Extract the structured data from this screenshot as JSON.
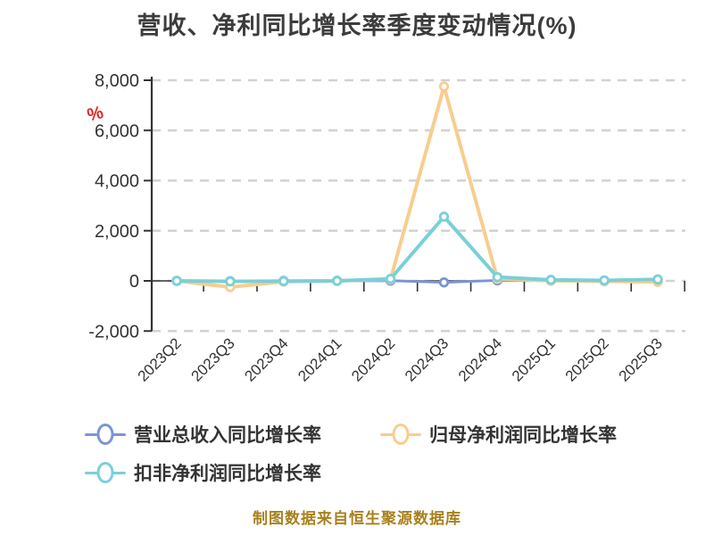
{
  "title": "营收、净利同比增长率季度变动情况(%)",
  "y_axis_unit": "%",
  "footer": "制图数据来自恒生聚源数据库",
  "colors": {
    "revenue": "#7b94d6",
    "net_profit": "#f8cd8e",
    "non_gaap": "#79d0d8",
    "grid": "#d2d2d2",
    "axis": "#333333",
    "label": "#333333",
    "title": "#3c3c3c",
    "unit": "#e42320",
    "footer": "#a9801c"
  },
  "legend": {
    "items": [
      {
        "key": "revenue",
        "label": "营业总收入同比增长率"
      },
      {
        "key": "net_profit",
        "label": "归母净利润同比增长率"
      },
      {
        "key": "non_gaap",
        "label": "扣非净利润同比增长率"
      }
    ]
  },
  "chart_data": {
    "type": "line",
    "categories": [
      "2023Q2",
      "2023Q3",
      "2023Q4",
      "2024Q1",
      "2024Q2",
      "2024Q3",
      "2024Q4",
      "2025Q1",
      "2025Q2",
      "2025Q3"
    ],
    "series": [
      {
        "key": "revenue",
        "name": "营业总收入同比增长率",
        "values": [
          0,
          -10,
          0,
          5,
          10,
          -60,
          20,
          10,
          0,
          10
        ]
      },
      {
        "key": "net_profit",
        "name": "归母净利润同比增长率",
        "values": [
          0,
          -250,
          -30,
          0,
          60,
          7750,
          80,
          10,
          -20,
          -40
        ]
      },
      {
        "key": "non_gaap",
        "name": "扣非净利润同比增长率",
        "values": [
          0,
          -20,
          -10,
          0,
          80,
          2560,
          150,
          40,
          20,
          60
        ]
      }
    ],
    "y_ticks": [
      8000,
      6000,
      4000,
      2000,
      0,
      -2000
    ],
    "ylim": [
      -2000,
      8000
    ],
    "xlabel": "",
    "ylabel": "%",
    "grid": "dashed-horizontal",
    "x_label_rotation": -45,
    "legend_position": "bottom"
  }
}
